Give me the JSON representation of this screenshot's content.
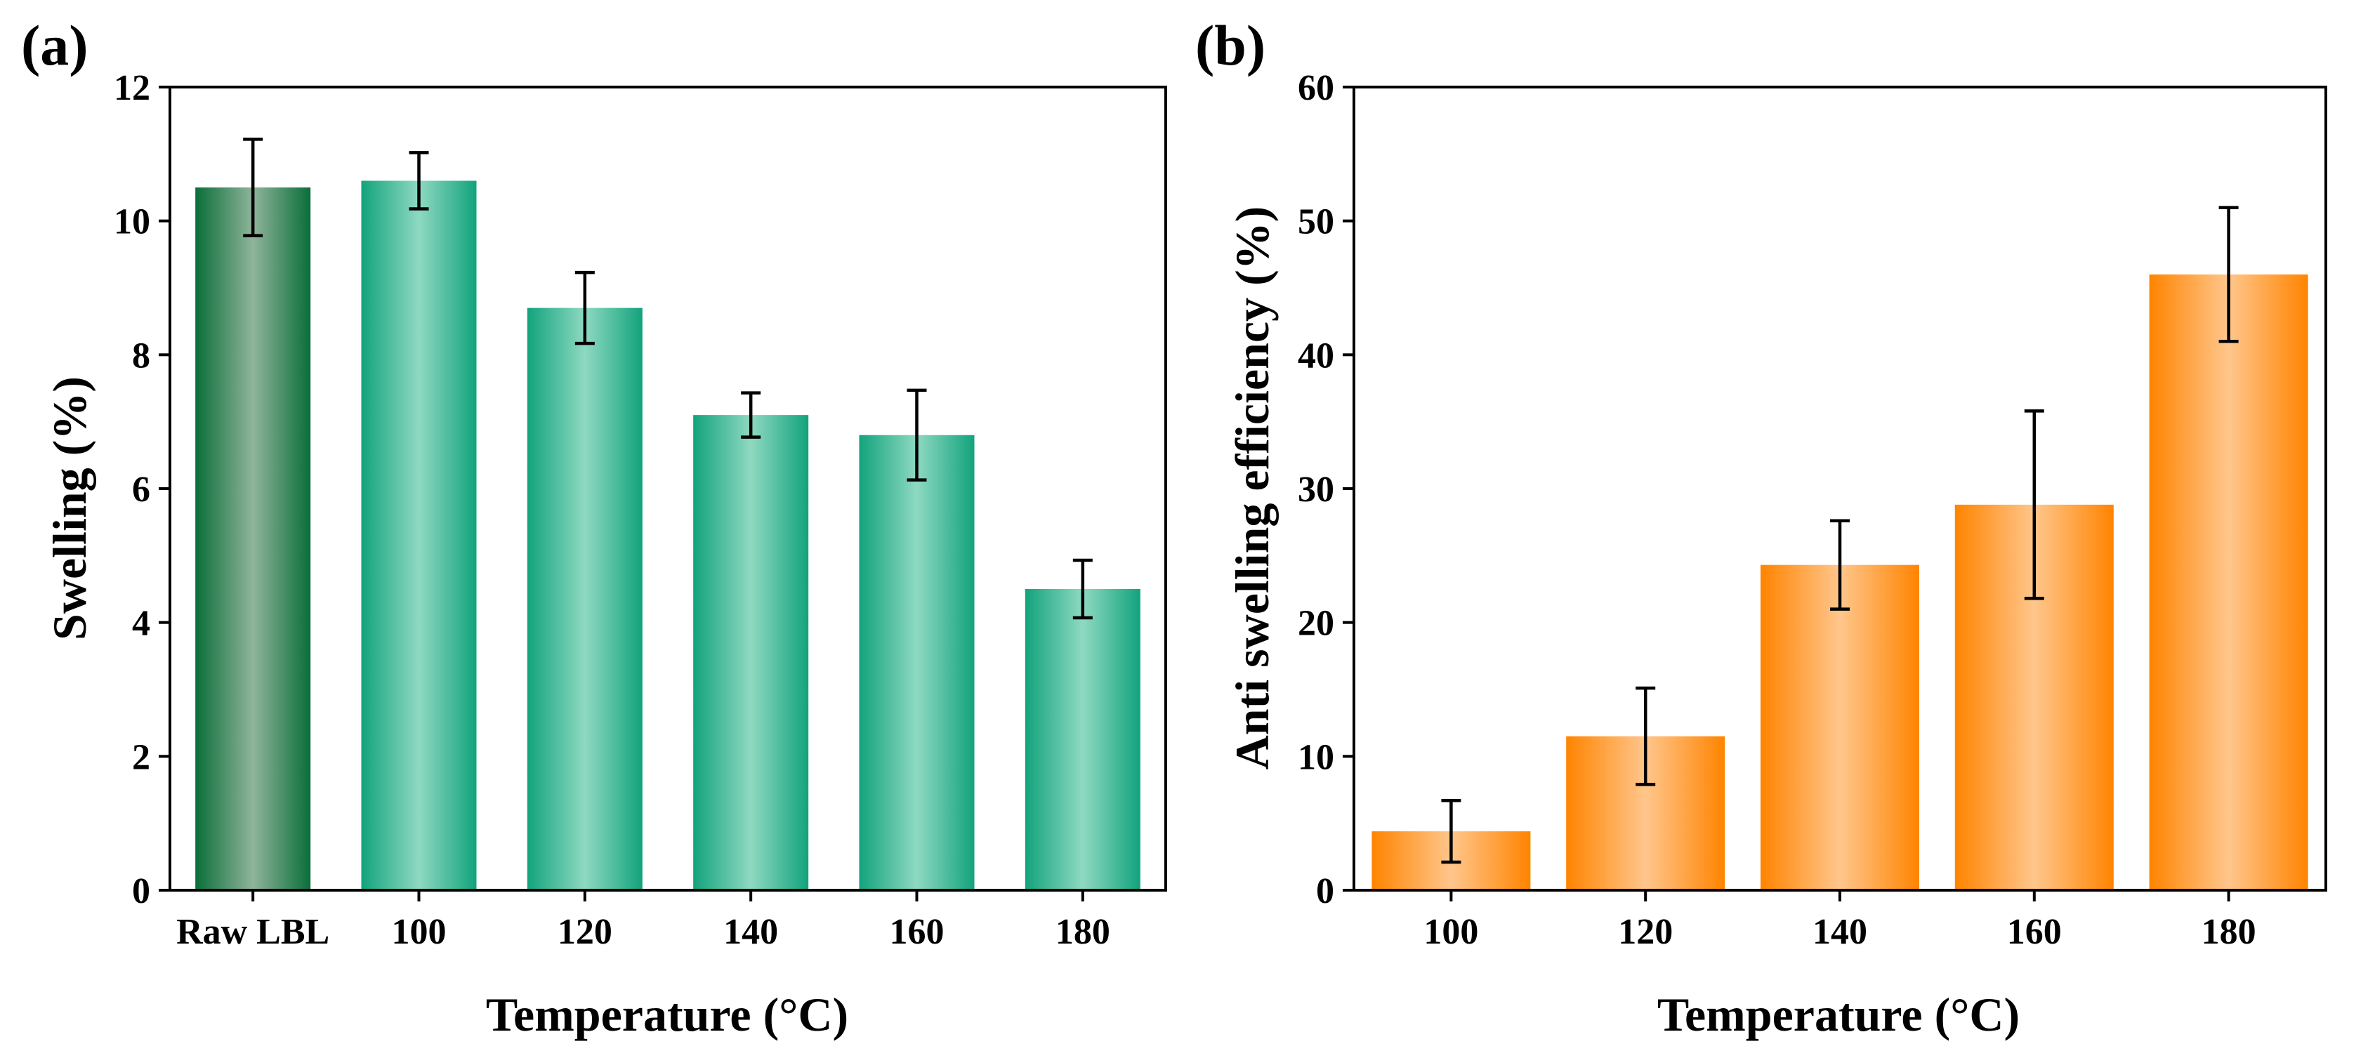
{
  "chart_data": [
    {
      "panel_label": "(a)",
      "type": "bar",
      "title": "",
      "xlabel": "Temperature (°C)",
      "ylabel": "Swelling (%)",
      "ylim": [
        0,
        12
      ],
      "yticks": [
        0,
        2,
        4,
        6,
        8,
        10,
        12
      ],
      "grid": false,
      "categories": [
        "Raw LBL",
        "100",
        "120",
        "140",
        "160",
        "180"
      ],
      "values": [
        10.5,
        10.6,
        8.7,
        7.1,
        6.8,
        4.5
      ],
      "errors": [
        0.72,
        0.42,
        0.53,
        0.33,
        0.67,
        0.43
      ],
      "colors": [
        "#0a6e3a",
        "#12a37c",
        "#12a37c",
        "#12a37c",
        "#12a37c",
        "#12a37c"
      ],
      "highlight_colors": [
        "#8fb49a",
        "#8ed9c1",
        "#8ed9c1",
        "#8ed9c1",
        "#8ed9c1",
        "#8ed9c1"
      ]
    },
    {
      "panel_label": "(b)",
      "type": "bar",
      "title": "",
      "xlabel": "Temperature (°C)",
      "ylabel": "Anti swelling efficiency (%)",
      "ylim": [
        0,
        60
      ],
      "yticks": [
        0,
        10,
        20,
        30,
        40,
        50,
        60
      ],
      "grid": false,
      "categories": [
        "100",
        "120",
        "140",
        "160",
        "180"
      ],
      "values": [
        4.4,
        11.5,
        24.3,
        28.8,
        46.0
      ],
      "errors": [
        2.3,
        3.6,
        3.3,
        7.0,
        5.0
      ],
      "colors": [
        "#ff8400",
        "#ff8400",
        "#ff8400",
        "#ff8400",
        "#ff8400"
      ],
      "highlight_colors": [
        "#ffc68c",
        "#ffc68c",
        "#ffc68c",
        "#ffc68c",
        "#ffc68c"
      ]
    }
  ]
}
